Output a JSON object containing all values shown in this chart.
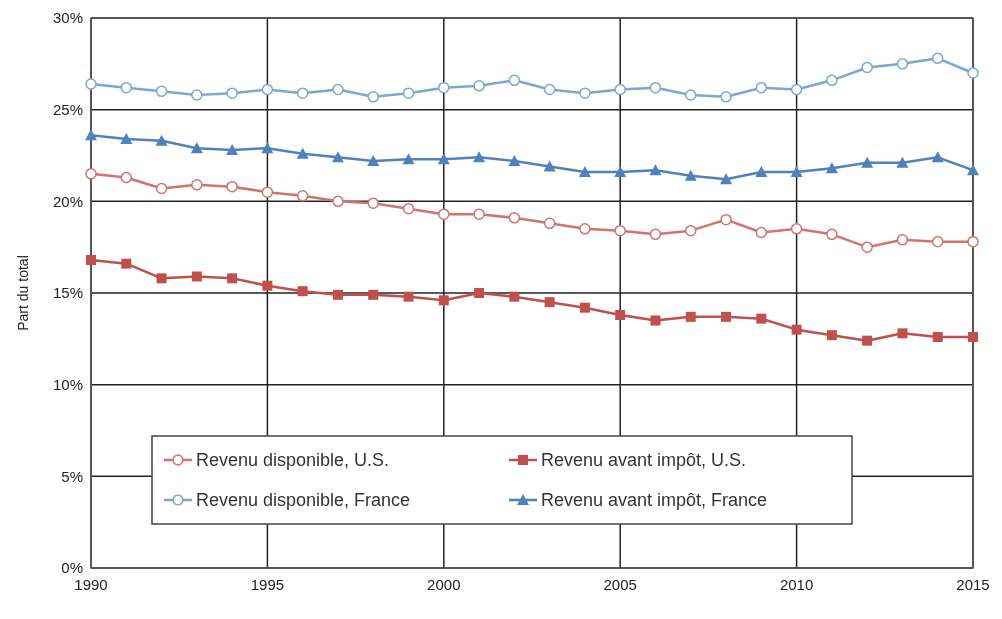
{
  "chart_data": {
    "type": "line",
    "ylabel": "Part du total",
    "x": [
      1990,
      1991,
      1992,
      1993,
      1994,
      1995,
      1996,
      1997,
      1998,
      1999,
      2000,
      2001,
      2002,
      2003,
      2004,
      2005,
      2006,
      2007,
      2008,
      2009,
      2010,
      2011,
      2012,
      2013,
      2014,
      2015
    ],
    "xlim": [
      1990,
      2015
    ],
    "xticks": [
      1990,
      1995,
      2000,
      2005,
      2010,
      2015
    ],
    "ylim": [
      0,
      30
    ],
    "yticks": [
      {
        "value": 0,
        "label": "0%"
      },
      {
        "value": 5,
        "label": "5%"
      },
      {
        "value": 10,
        "label": "10%"
      },
      {
        "value": 15,
        "label": "15%"
      },
      {
        "value": 20,
        "label": "20%"
      },
      {
        "value": 25,
        "label": "25%"
      },
      {
        "value": 30,
        "label": "30%"
      }
    ],
    "grid": true,
    "legend": "bottom",
    "line_style": "solid",
    "series": [
      {
        "name": "Revenu disponible, U.S.",
        "color": "#d27370",
        "marker": "circle",
        "values": [
          21.5,
          21.3,
          20.7,
          20.9,
          20.8,
          20.5,
          20.3,
          20.0,
          19.9,
          19.6,
          19.3,
          19.3,
          19.1,
          18.8,
          18.5,
          18.4,
          18.2,
          18.4,
          19.0,
          18.3,
          18.5,
          18.2,
          17.5,
          17.9,
          17.8,
          17.8
        ]
      },
      {
        "name": "Revenu avant impôt, U.S.",
        "color": "#c0504d",
        "marker": "square",
        "values": [
          16.8,
          16.6,
          15.8,
          15.9,
          15.8,
          15.4,
          15.1,
          14.9,
          14.9,
          14.8,
          14.6,
          15.0,
          14.8,
          14.5,
          14.2,
          13.8,
          13.5,
          13.7,
          13.7,
          13.6,
          13.0,
          12.7,
          12.4,
          12.8,
          12.6,
          12.6
        ]
      },
      {
        "name": "Revenu disponible, France",
        "color": "#7ba7d4",
        "marker": "circle",
        "values": [
          26.4,
          26.2,
          26.0,
          25.8,
          25.9,
          26.1,
          25.9,
          26.1,
          25.7,
          25.9,
          26.2,
          26.3,
          26.6,
          26.1,
          25.9,
          26.1,
          26.2,
          25.8,
          25.7,
          26.2,
          26.1,
          26.6,
          27.3,
          27.5,
          27.8,
          27.0
        ]
      },
      {
        "name": "Revenu avant impôt, France",
        "color": "#4f81bd",
        "marker": "triangle",
        "values": [
          23.6,
          23.4,
          23.3,
          22.9,
          22.8,
          22.9,
          22.6,
          22.4,
          22.2,
          22.3,
          22.3,
          22.4,
          22.2,
          21.9,
          21.6,
          21.6,
          21.7,
          21.4,
          21.2,
          21.6,
          21.6,
          21.8,
          22.1,
          22.1,
          22.4,
          21.7
        ]
      }
    ]
  }
}
